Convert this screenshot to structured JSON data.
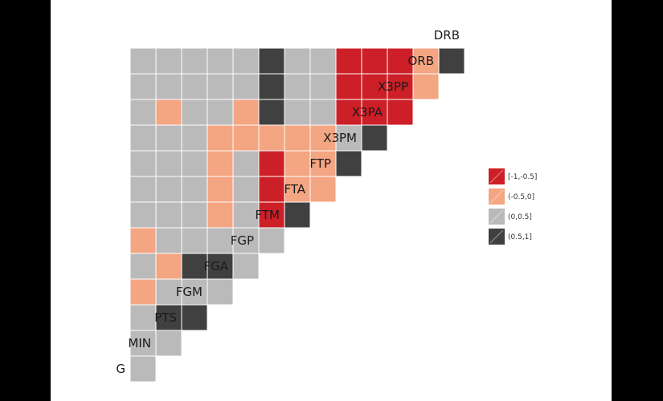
{
  "chart_data": {
    "type": "heatmap",
    "title": "",
    "variables": [
      "G",
      "MIN",
      "PTS",
      "FGM",
      "FGA",
      "FGP",
      "FTM",
      "FTA",
      "FTP",
      "X3PM",
      "X3PA",
      "X3PP",
      "ORB",
      "DRB"
    ],
    "bins": [
      "[-1,-0.5]",
      "(-0.5,0]",
      "(0,0.5]",
      "(0.5,1]"
    ],
    "colors": [
      "#cc1f27",
      "#f4a582",
      "#bababa",
      "#404040"
    ],
    "legend_position": "right",
    "cells": [
      {
        "row": "MIN",
        "col": "G",
        "bin": 2
      },
      {
        "row": "PTS",
        "col": "G",
        "bin": 2
      },
      {
        "row": "PTS",
        "col": "MIN",
        "bin": 2
      },
      {
        "row": "FGM",
        "col": "G",
        "bin": 2
      },
      {
        "row": "FGM",
        "col": "MIN",
        "bin": 3
      },
      {
        "row": "FGM",
        "col": "PTS",
        "bin": 3
      },
      {
        "row": "FGA",
        "col": "G",
        "bin": 1
      },
      {
        "row": "FGA",
        "col": "MIN",
        "bin": 2
      },
      {
        "row": "FGA",
        "col": "PTS",
        "bin": 2
      },
      {
        "row": "FGA",
        "col": "FGM",
        "bin": 2
      },
      {
        "row": "FGP",
        "col": "G",
        "bin": 2
      },
      {
        "row": "FGP",
        "col": "MIN",
        "bin": 1
      },
      {
        "row": "FGP",
        "col": "PTS",
        "bin": 3
      },
      {
        "row": "FGP",
        "col": "FGM",
        "bin": 3
      },
      {
        "row": "FGP",
        "col": "FGA",
        "bin": 2
      },
      {
        "row": "FTM",
        "col": "G",
        "bin": 1
      },
      {
        "row": "FTM",
        "col": "MIN",
        "bin": 2
      },
      {
        "row": "FTM",
        "col": "PTS",
        "bin": 2
      },
      {
        "row": "FTM",
        "col": "FGM",
        "bin": 2
      },
      {
        "row": "FTM",
        "col": "FGA",
        "bin": 2
      },
      {
        "row": "FTM",
        "col": "FGP",
        "bin": 2
      },
      {
        "row": "FTA",
        "col": "G",
        "bin": 2
      },
      {
        "row": "FTA",
        "col": "MIN",
        "bin": 2
      },
      {
        "row": "FTA",
        "col": "PTS",
        "bin": 2
      },
      {
        "row": "FTA",
        "col": "FGM",
        "bin": 1
      },
      {
        "row": "FTA",
        "col": "FGA",
        "bin": 2
      },
      {
        "row": "FTA",
        "col": "FGP",
        "bin": 0
      },
      {
        "row": "FTA",
        "col": "FTM",
        "bin": 3
      },
      {
        "row": "FTP",
        "col": "G",
        "bin": 2
      },
      {
        "row": "FTP",
        "col": "MIN",
        "bin": 2
      },
      {
        "row": "FTP",
        "col": "PTS",
        "bin": 2
      },
      {
        "row": "FTP",
        "col": "FGM",
        "bin": 1
      },
      {
        "row": "FTP",
        "col": "FGA",
        "bin": 2
      },
      {
        "row": "FTP",
        "col": "FGP",
        "bin": 0
      },
      {
        "row": "FTP",
        "col": "FTM",
        "bin": 1
      },
      {
        "row": "FTP",
        "col": "FTA",
        "bin": 1
      },
      {
        "row": "X3PM",
        "col": "G",
        "bin": 2
      },
      {
        "row": "X3PM",
        "col": "MIN",
        "bin": 2
      },
      {
        "row": "X3PM",
        "col": "PTS",
        "bin": 2
      },
      {
        "row": "X3PM",
        "col": "FGM",
        "bin": 1
      },
      {
        "row": "X3PM",
        "col": "FGA",
        "bin": 2
      },
      {
        "row": "X3PM",
        "col": "FGP",
        "bin": 0
      },
      {
        "row": "X3PM",
        "col": "FTM",
        "bin": 1
      },
      {
        "row": "X3PM",
        "col": "FTA",
        "bin": 1
      },
      {
        "row": "X3PM",
        "col": "FTP",
        "bin": 3
      },
      {
        "row": "X3PA",
        "col": "G",
        "bin": 2
      },
      {
        "row": "X3PA",
        "col": "MIN",
        "bin": 2
      },
      {
        "row": "X3PA",
        "col": "PTS",
        "bin": 2
      },
      {
        "row": "X3PA",
        "col": "FGM",
        "bin": 1
      },
      {
        "row": "X3PA",
        "col": "FGA",
        "bin": 1
      },
      {
        "row": "X3PA",
        "col": "FGP",
        "bin": 1
      },
      {
        "row": "X3PA",
        "col": "FTM",
        "bin": 1
      },
      {
        "row": "X3PA",
        "col": "FTA",
        "bin": 1
      },
      {
        "row": "X3PA",
        "col": "FTP",
        "bin": 2
      },
      {
        "row": "X3PA",
        "col": "X3PM",
        "bin": 3
      },
      {
        "row": "X3PP",
        "col": "G",
        "bin": 2
      },
      {
        "row": "X3PP",
        "col": "MIN",
        "bin": 1
      },
      {
        "row": "X3PP",
        "col": "PTS",
        "bin": 2
      },
      {
        "row": "X3PP",
        "col": "FGM",
        "bin": 2
      },
      {
        "row": "X3PP",
        "col": "FGA",
        "bin": 1
      },
      {
        "row": "X3PP",
        "col": "FGP",
        "bin": 3
      },
      {
        "row": "X3PP",
        "col": "FTM",
        "bin": 2
      },
      {
        "row": "X3PP",
        "col": "FTA",
        "bin": 2
      },
      {
        "row": "X3PP",
        "col": "FTP",
        "bin": 0
      },
      {
        "row": "X3PP",
        "col": "X3PM",
        "bin": 0
      },
      {
        "row": "X3PP",
        "col": "X3PA",
        "bin": 0
      },
      {
        "row": "ORB",
        "col": "G",
        "bin": 2
      },
      {
        "row": "ORB",
        "col": "MIN",
        "bin": 2
      },
      {
        "row": "ORB",
        "col": "PTS",
        "bin": 2
      },
      {
        "row": "ORB",
        "col": "FGM",
        "bin": 2
      },
      {
        "row": "ORB",
        "col": "FGA",
        "bin": 2
      },
      {
        "row": "ORB",
        "col": "FGP",
        "bin": 3
      },
      {
        "row": "ORB",
        "col": "FTM",
        "bin": 2
      },
      {
        "row": "ORB",
        "col": "FTA",
        "bin": 2
      },
      {
        "row": "ORB",
        "col": "FTP",
        "bin": 0
      },
      {
        "row": "ORB",
        "col": "X3PM",
        "bin": 0
      },
      {
        "row": "ORB",
        "col": "X3PA",
        "bin": 0
      },
      {
        "row": "ORB",
        "col": "X3PP",
        "bin": 1
      },
      {
        "row": "DRB",
        "col": "G",
        "bin": 2
      },
      {
        "row": "DRB",
        "col": "MIN",
        "bin": 2
      },
      {
        "row": "DRB",
        "col": "PTS",
        "bin": 2
      },
      {
        "row": "DRB",
        "col": "FGM",
        "bin": 2
      },
      {
        "row": "DRB",
        "col": "FGA",
        "bin": 2
      },
      {
        "row": "DRB",
        "col": "FGP",
        "bin": 3
      },
      {
        "row": "DRB",
        "col": "FTM",
        "bin": 2
      },
      {
        "row": "DRB",
        "col": "FTA",
        "bin": 2
      },
      {
        "row": "DRB",
        "col": "FTP",
        "bin": 0
      },
      {
        "row": "DRB",
        "col": "X3PM",
        "bin": 0
      },
      {
        "row": "DRB",
        "col": "X3PA",
        "bin": 0
      },
      {
        "row": "DRB",
        "col": "X3PP",
        "bin": 1
      },
      {
        "row": "DRB",
        "col": "ORB",
        "bin": 3
      }
    ]
  }
}
